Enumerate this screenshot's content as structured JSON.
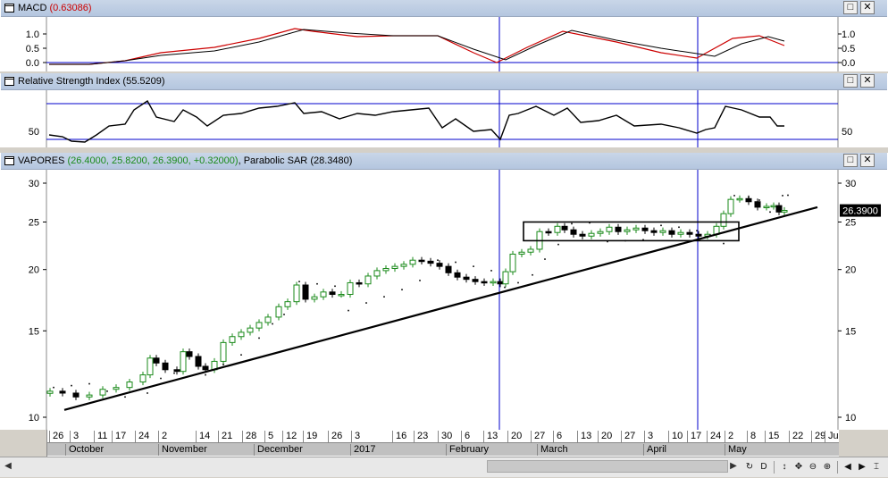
{
  "macd": {
    "title_name": "MACD",
    "title_value": "(0.63086)",
    "y_ticks": [
      "1.0",
      "0.5",
      "0.0"
    ],
    "y_values": [
      1.0,
      0.5,
      0.0
    ]
  },
  "rsi": {
    "title_name": "Relative Strength Index",
    "title_value": "(55.5209)",
    "y_ticks": [
      "50"
    ]
  },
  "price": {
    "title_name": "VAPORES",
    "title_ohlc": "(26.4000, 25.8200, 26.3900, +0.32000)",
    "title_sar_name": "Parabolic SAR",
    "title_sar_value": "(28.3480)",
    "last_price": "26.3900",
    "y_ticks": [
      "30",
      "25",
      "20",
      "15",
      "10"
    ],
    "y_values": [
      30,
      25,
      20,
      15,
      10
    ]
  },
  "window_buttons": {
    "maximize": "□",
    "close": "✕"
  },
  "xaxis": {
    "days": [
      "26",
      "3",
      "11",
      "17",
      "24",
      "2",
      "14",
      "21",
      "28",
      "5",
      "12",
      "19",
      "26",
      "3",
      "16",
      "23",
      "30",
      "6",
      "13",
      "20",
      "27",
      "6",
      "13",
      "20",
      "27",
      "3",
      "10",
      "17",
      "24",
      "2",
      "8",
      "15",
      "22",
      "29",
      "Ju"
    ],
    "months": [
      "October",
      "November",
      "December",
      "2017",
      "February",
      "March",
      "April",
      "May"
    ]
  },
  "toolbar": {
    "icons": [
      "refresh-icon",
      "d-icon",
      "move-vertical-icon",
      "move-all-icon",
      "zoom-out-icon",
      "zoom-in-icon",
      "scroll-left-icon",
      "scroll-right-icon",
      "cursor-icon"
    ],
    "glyphs": [
      "↻",
      "D",
      "↕",
      "✥",
      "⊖",
      "⊕",
      "◀",
      "▶",
      "⌶"
    ]
  },
  "colors": {
    "bull": "#1a8a1a",
    "bear": "#000000",
    "macd_signal": "#cc0000",
    "guide_line": "#0000cc",
    "title_bar": "#b4c6df"
  }
}
